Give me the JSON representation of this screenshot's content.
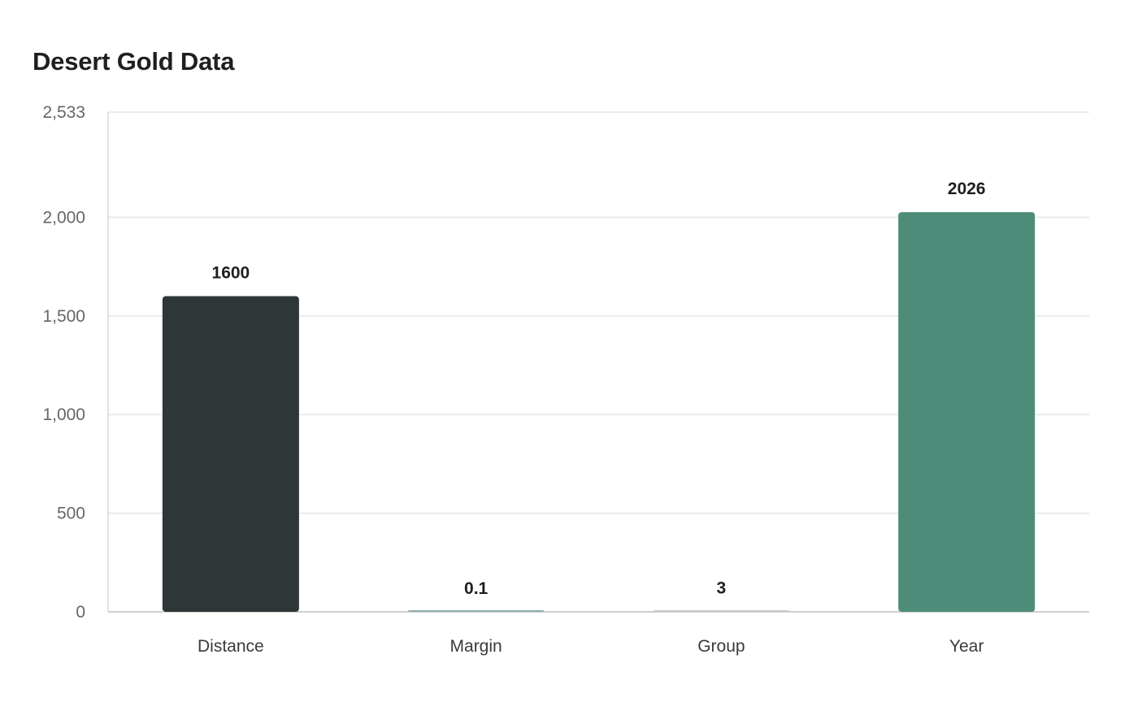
{
  "chart_data": {
    "type": "bar",
    "title": "Desert Gold Data",
    "xlabel": "",
    "ylabel": "",
    "categories": [
      "Distance",
      "Margin",
      "Group",
      "Year"
    ],
    "values": [
      1600,
      0.1,
      3,
      2026
    ],
    "data_labels": [
      "1600",
      "0.1",
      "3",
      "2026"
    ],
    "ylim": [
      0,
      2533
    ],
    "y_ticks": [
      0,
      500,
      1000,
      1500,
      2000,
      2533
    ],
    "y_tick_labels": [
      "0",
      "500",
      "1,000",
      "1,500",
      "2,000",
      "2,533"
    ],
    "bar_colors": [
      "#2e3638",
      "#93aeb0",
      "#c4cccb",
      "#4e8c7a"
    ],
    "grid": true,
    "legend": "none"
  }
}
